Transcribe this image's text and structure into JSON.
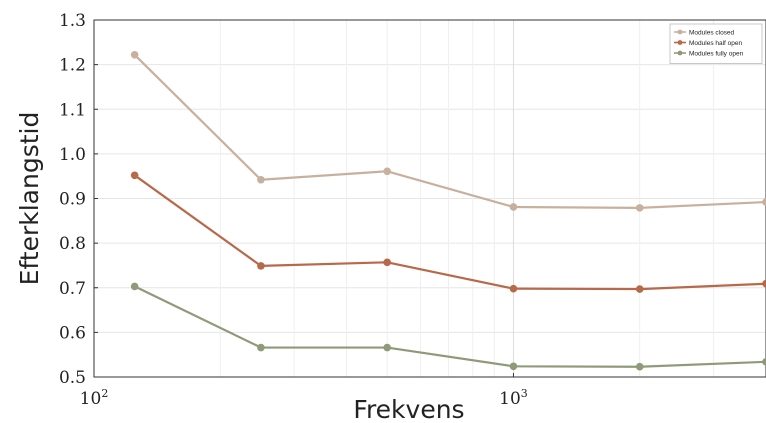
{
  "chart_data": {
    "type": "line",
    "xlabel": "Frekvens",
    "ylabel": "Efterklangstid",
    "x_scale": "log",
    "xlim": [
      100,
      4000
    ],
    "ylim": [
      0.5,
      1.3
    ],
    "x": [
      125,
      250,
      500,
      1000,
      2000,
      4000
    ],
    "x_ticks": [
      {
        "value": 100,
        "base": "10",
        "exp": "2"
      },
      {
        "value": 1000,
        "base": "10",
        "exp": "3"
      }
    ],
    "y_ticks": [
      0.5,
      0.6,
      0.7,
      0.8,
      0.9,
      1.0,
      1.1,
      1.2,
      1.3
    ],
    "y_tick_labels": [
      "0.5",
      "0.6",
      "0.7",
      "0.8",
      "0.9",
      "1.0",
      "1.1",
      "1.2",
      "1.3"
    ],
    "grid": true,
    "legend_position": "top-right",
    "series": [
      {
        "name": "Modules closed",
        "color": "#c8b09e",
        "values": [
          1.222,
          0.942,
          0.961,
          0.881,
          0.879,
          0.892
        ]
      },
      {
        "name": "Modules half open",
        "color": "#b8694a",
        "values": [
          0.952,
          0.749,
          0.757,
          0.698,
          0.697,
          0.709
        ]
      },
      {
        "name": "Modules fully open",
        "color": "#8f9a78",
        "values": [
          0.703,
          0.566,
          0.566,
          0.524,
          0.523,
          0.534
        ]
      }
    ]
  }
}
